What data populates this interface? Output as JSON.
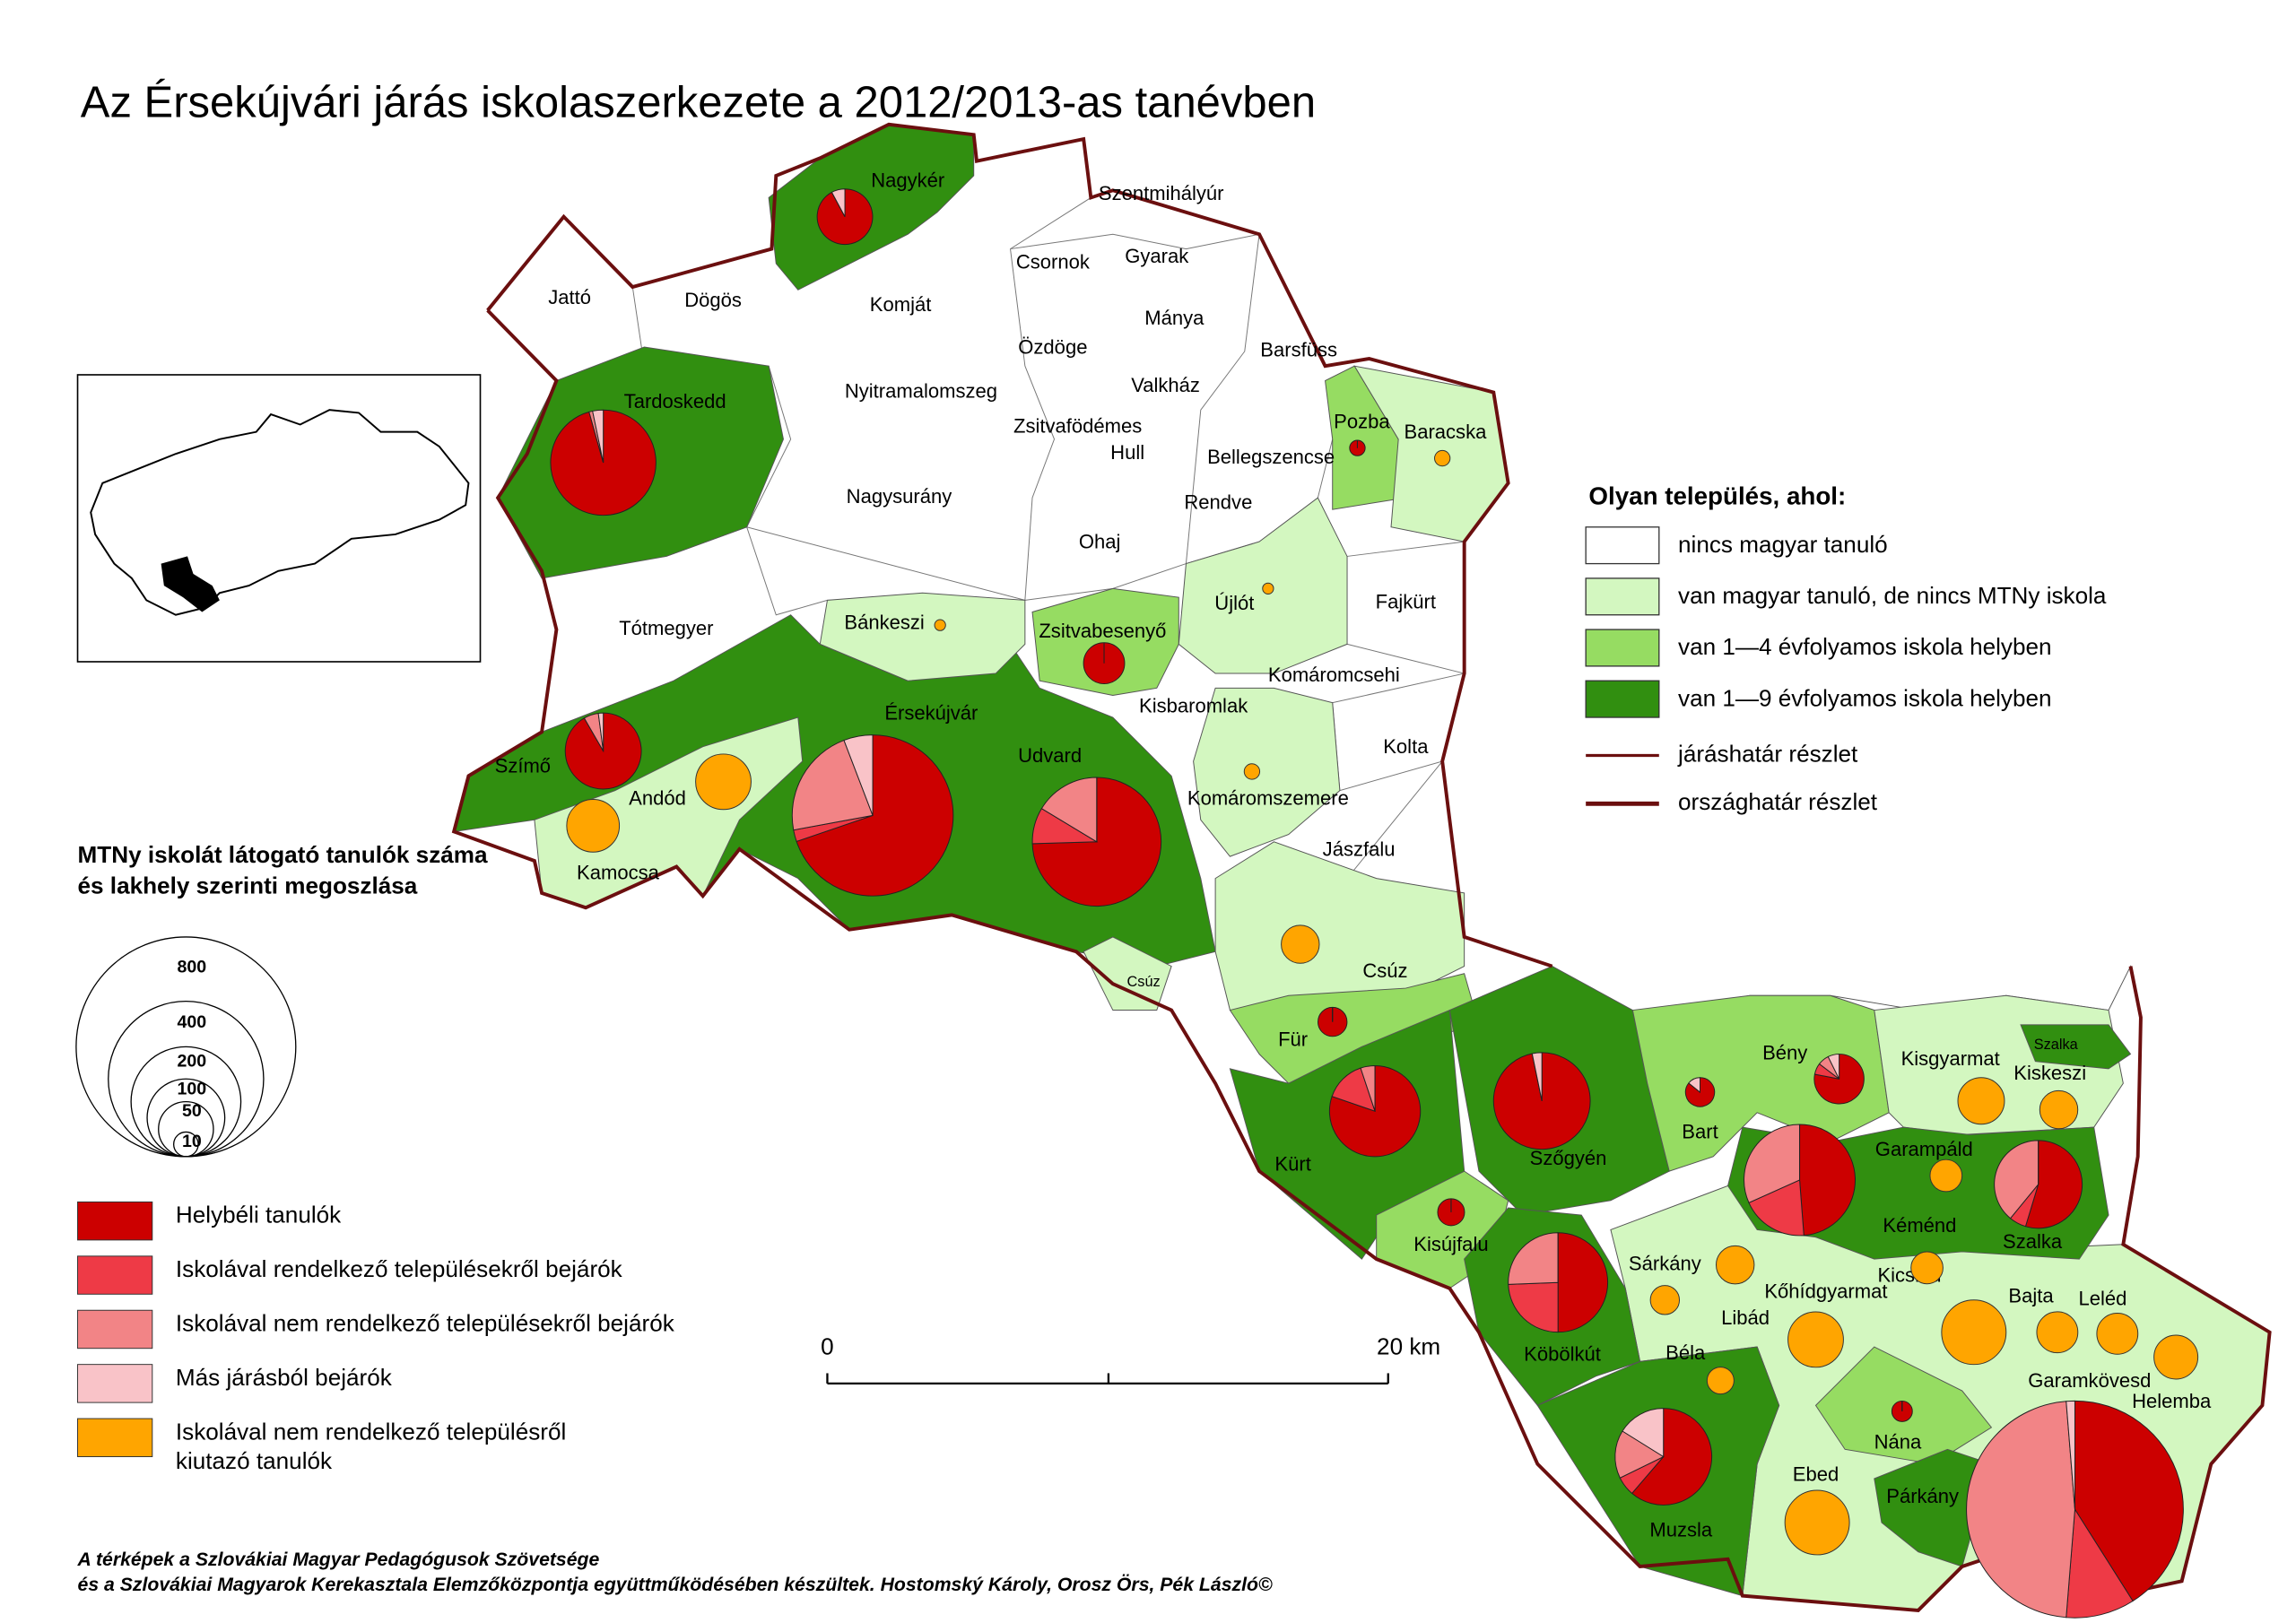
{
  "title": "Az Érsekújvári járás iskolaszerkezete a 2012/2013-as tanévben",
  "settlements": [
    "Jattó",
    "Dögös",
    "Komját",
    "Nagykér",
    "Szentmihályúr",
    "Csornok",
    "Gyarak",
    "Mánya",
    "Özdöge",
    "Barsfüss",
    "Nyitramalomszeg",
    "Valkház",
    "Tardoskedd",
    "Zsitvafödémes",
    "Hull",
    "Pozba",
    "Baracska",
    "Bellegszencse",
    "Nagysurány",
    "Rendve",
    "Ohaj",
    "Újlót",
    "Fajkürt",
    "Tótmegyer",
    "Bánkeszi",
    "Zsitvabesenyő",
    "Komáromcsehi",
    "Kisbaromlak",
    "Érsekújvár",
    "Kolta",
    "Udvard",
    "Szímő",
    "Andód",
    "Komáromszemere",
    "Kamocsa",
    "Jászfalu",
    "Csúz",
    "Csúz",
    "Für",
    "Bény",
    "Kisgyarmat",
    "Szalka",
    "Kiskeszi",
    "Bart",
    "Garampáld",
    "Kürt",
    "Szőgyén",
    "Kéménd",
    "Szalka",
    "Kisújfalu",
    "Sárkány",
    "Kicsind",
    "Kőhídgyarmat",
    "Bajta",
    "Leléd",
    "Libád",
    "Köbölkút",
    "Béla",
    "Garamkövesd",
    "Helemba",
    "Nána",
    "Ebed",
    "Párkány",
    "Muzsla"
  ],
  "legend": {
    "title": "Olyan település, ahol:",
    "areas": [
      "nincs magyar tanuló",
      "van magyar tanuló, de nincs MTNy iskola",
      "van 1—4 évfolyamos iskola helyben",
      "van 1—9 évfolyamos iskola helyben"
    ],
    "lines": [
      "járáshatár részlet",
      "országhatár részlet"
    ]
  },
  "size_legend": {
    "title": [
      "MTNy iskolát látogató tanulók száma",
      "és lakhely szerinti megoszlása"
    ],
    "values": [
      800,
      400,
      200,
      100,
      50,
      10
    ]
  },
  "pie_legend": [
    {
      "lines": [
        "Helybéli tanulók"
      ],
      "color": "#cc0000"
    },
    {
      "lines": [
        "Iskolával rendelkező településekről bejárók"
      ],
      "color": "#ee3a46"
    },
    {
      "lines": [
        "Iskolával nem rendelkező településekről bejárók"
      ],
      "color": "#f28486"
    },
    {
      "lines": [
        "Más járásból bejárók"
      ],
      "color": "#f9c3c8"
    },
    {
      "lines": [
        "Iskolával nem rendelkező településről",
        "kiutazó tanulók"
      ],
      "color": "#ffa500"
    }
  ],
  "pies": [
    {
      "values": [
        47,
        0,
        0,
        4
      ]
    },
    {
      "values": [
        176,
        0,
        2,
        6
      ]
    },
    {
      "values": [
        88,
        0,
        6,
        2
      ]
    },
    {
      "values": [
        300,
        10,
        95,
        25
      ]
    },
    {
      "values": [
        205,
        25,
        45,
        0
      ]
    },
    {
      "values": [
        28,
        0,
        0,
        0
      ]
    },
    {
      "values": [
        4,
        0,
        0,
        0
      ]
    },
    {
      "values": [
        14,
        0,
        0,
        0
      ]
    },
    {
      "values": [
        110,
        20,
        7,
        0
      ]
    },
    {
      "values": [
        150,
        0,
        0,
        5
      ]
    },
    {
      "values": [
        32,
        3,
        3,
        3
      ]
    },
    {
      "values": [
        12,
        0,
        0,
        2
      ]
    },
    {
      "values": [
        100,
        40,
        65,
        0
      ]
    },
    {
      "values": [
        70,
        8,
        50,
        0
      ]
    },
    {
      "values": [
        12,
        0,
        0,
        0
      ]
    },
    {
      "values": [
        82,
        40,
        42,
        0
      ]
    },
    {
      "values": [
        7,
        0,
        0,
        0
      ]
    },
    {
      "values": [
        95,
        10,
        25,
        25
      ]
    },
    {
      "values": [
        320,
        80,
        370,
        10
      ]
    }
  ],
  "outgoing": [
    4,
    2,
    2,
    4,
    51,
    46,
    24,
    36,
    24,
    17,
    14,
    24,
    17,
    51,
    12,
    69,
    28,
    28,
    32,
    69
  ],
  "scale_bar": {
    "ticks": [
      0,
      {
        "value": 20,
        "label": "20 km"
      }
    ]
  },
  "credits": [
    "A térképek a  Szlovákiai Magyar Pedagógusok Szövetsége",
    "és a Szlovákiai Magyarok Kerekasztala Elemzőközpontja együttműködésében készültek. Hostomský Károly, Orosz Örs, Pék László©"
  ]
}
